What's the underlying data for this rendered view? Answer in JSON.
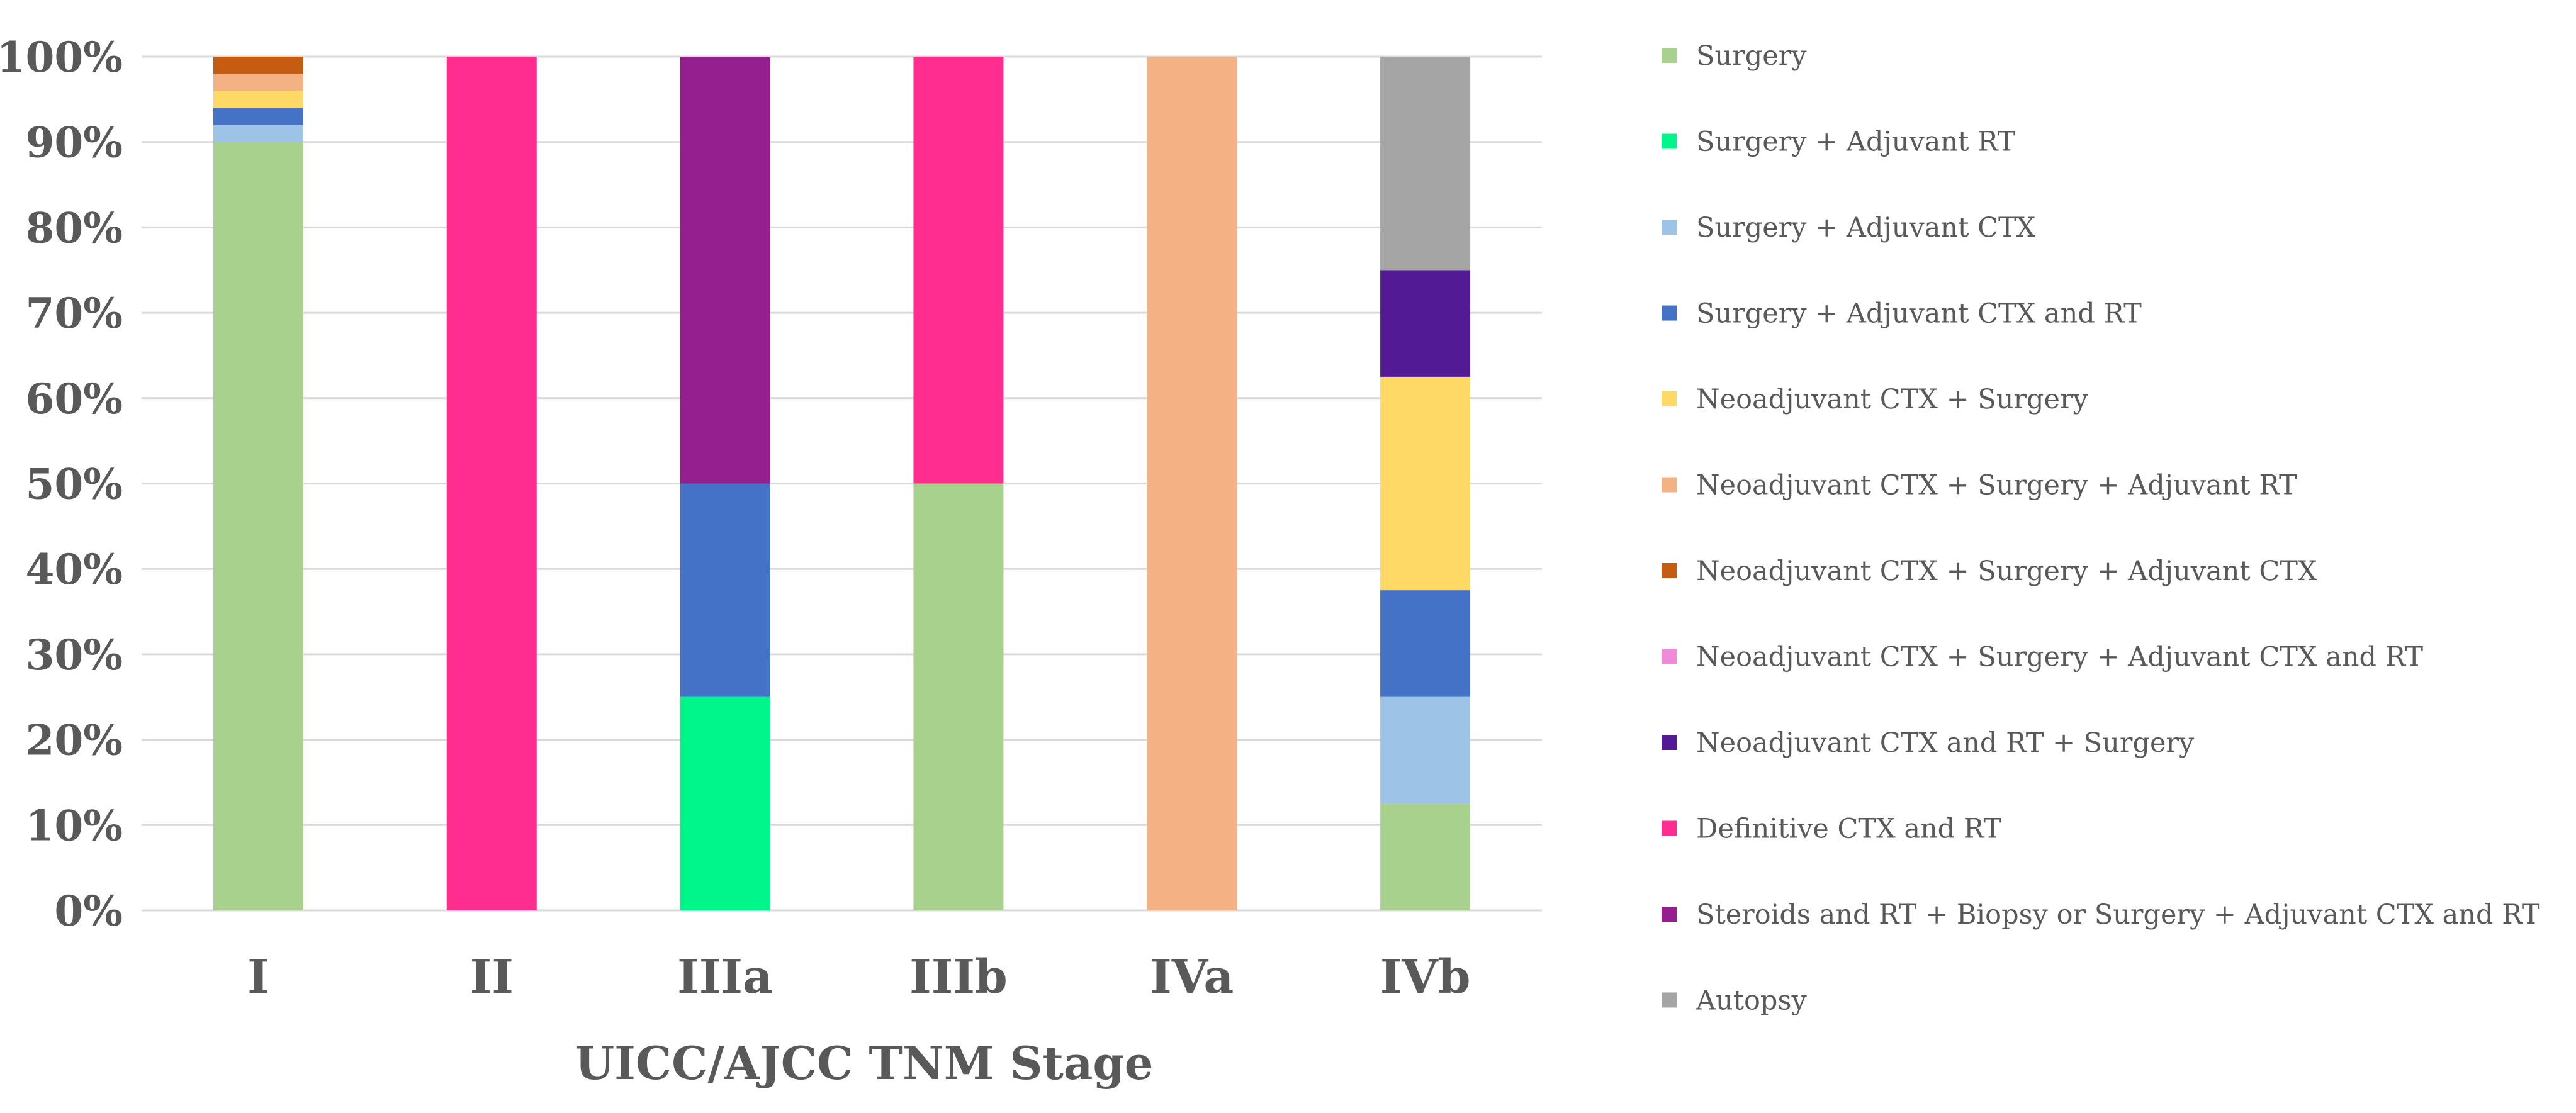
{
  "chart_data": {
    "type": "bar",
    "stacked": true,
    "normalized": true,
    "title": "",
    "xlabel": "UICC/AJCC TNM Stage",
    "ylabel": "",
    "ylim": [
      0,
      100
    ],
    "y_ticks": [
      "0%",
      "10%",
      "20%",
      "30%",
      "40%",
      "50%",
      "60%",
      "70%",
      "80%",
      "90%",
      "100%"
    ],
    "y_tick_values": [
      0,
      10,
      20,
      30,
      40,
      50,
      60,
      70,
      80,
      90,
      100
    ],
    "grid": true,
    "legend_position": "right",
    "categories": [
      "I",
      "II",
      "IIIa",
      "IIIb",
      "IVa",
      "IVb"
    ],
    "series": [
      {
        "name": "Surgery",
        "color": "#a9d18e",
        "values": [
          90,
          0,
          0,
          50,
          0,
          12.5
        ]
      },
      {
        "name": "Surgery + Adjuvant RT",
        "color": "#00f58a",
        "values": [
          0,
          0,
          25,
          0,
          0,
          0
        ]
      },
      {
        "name": "Surgery + Adjuvant CTX",
        "color": "#9dc3e6",
        "values": [
          2,
          0,
          0,
          0,
          0,
          12.5
        ]
      },
      {
        "name": "Surgery + Adjuvant CTX and RT",
        "color": "#4472c4",
        "values": [
          2,
          0,
          25,
          0,
          0,
          12.5
        ]
      },
      {
        "name": "Neoadjuvant CTX + Surgery",
        "color": "#ffd966",
        "values": [
          2,
          0,
          0,
          0,
          0,
          25
        ]
      },
      {
        "name": "Neoadjuvant CTX + Surgery + Adjuvant RT",
        "color": "#f4b183",
        "values": [
          2,
          0,
          0,
          0,
          100,
          0
        ]
      },
      {
        "name": "Neoadjuvant CTX + Surgery + Adjuvant CTX",
        "color": "#c55a11",
        "values": [
          2,
          0,
          0,
          0,
          0,
          0
        ]
      },
      {
        "name": "Neoadjuvant CTX + Surgery + Adjuvant CTX and RT",
        "color": "#ef8ad8",
        "values": [
          0,
          0,
          0,
          0,
          0,
          0
        ]
      },
      {
        "name": "Neoadjuvant CTX and RT + Surgery",
        "color": "#531a96",
        "values": [
          0,
          0,
          0,
          0,
          0,
          12.5
        ]
      },
      {
        "name": "Definitive CTX and RT",
        "color": "#ff2d8d",
        "values": [
          0,
          100,
          0,
          50,
          0,
          0
        ]
      },
      {
        "name": "Steroids and RT + Biopsy or Surgery + Adjuvant CTX and RT",
        "color": "#951e8e",
        "values": [
          0,
          0,
          50,
          0,
          0,
          0
        ]
      },
      {
        "name": "Autopsy",
        "color": "#a5a5a5",
        "values": [
          0,
          0,
          0,
          0,
          0,
          25
        ]
      }
    ]
  }
}
